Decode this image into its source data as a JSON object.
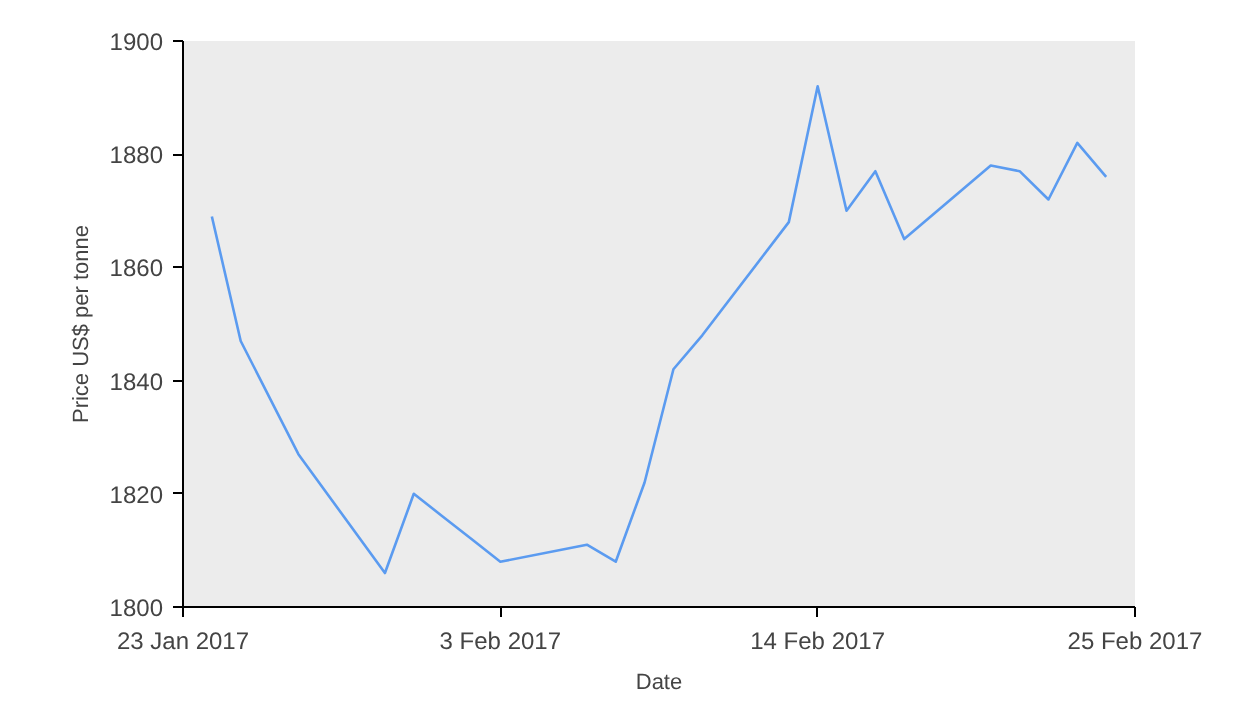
{
  "chart_data": {
    "type": "line",
    "xlabel": "Date",
    "ylabel": "Price US$ per tonne",
    "x": [
      "2017-01-24",
      "2017-01-25",
      "2017-01-26",
      "2017-01-27",
      "2017-01-30",
      "2017-01-31",
      "2017-02-01",
      "2017-02-02",
      "2017-02-03",
      "2017-02-06",
      "2017-02-07",
      "2017-02-08",
      "2017-02-09",
      "2017-02-10",
      "2017-02-13",
      "2017-02-14",
      "2017-02-15",
      "2017-02-16",
      "2017-02-17",
      "2017-02-20",
      "2017-02-21",
      "2017-02-22",
      "2017-02-23",
      "2017-02-24"
    ],
    "series": [
      {
        "color": "#5b9bf0",
        "values": [
          1869,
          1847,
          1837,
          1827,
          1806,
          1820,
          1816,
          1812,
          1808,
          1811,
          1808,
          1822,
          1842,
          1848,
          1868,
          1892,
          1870,
          1877,
          1865,
          1878,
          1877,
          1872,
          1882,
          1876
        ]
      }
    ],
    "xlim": [
      "2017-01-23",
      "2017-02-25"
    ],
    "xticks": [
      {
        "value": "2017-01-23",
        "label": "23 Jan 2017"
      },
      {
        "value": "2017-02-03",
        "label": "3 Feb 2017"
      },
      {
        "value": "2017-02-14",
        "label": "14 Feb 2017"
      },
      {
        "value": "2017-02-25",
        "label": "25 Feb 2017"
      }
    ],
    "ylim": [
      1800,
      1900
    ],
    "yticks": [
      1800,
      1820,
      1840,
      1860,
      1880,
      1900
    ],
    "grid": false,
    "marker": "none",
    "line_style": "solid"
  }
}
